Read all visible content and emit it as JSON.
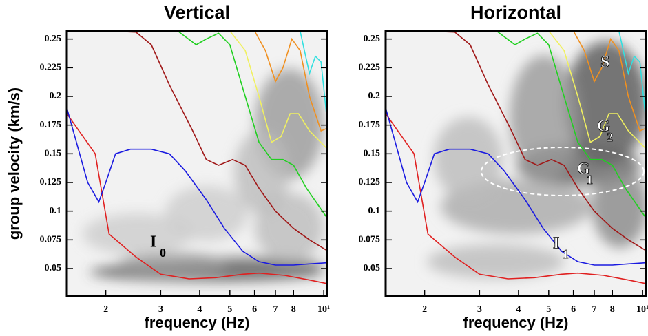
{
  "chart_data": [
    {
      "type": "line",
      "title": "Vertical",
      "xlabel": "frequency (Hz)",
      "ylabel": "group velocity (km/s)",
      "xscale": "log",
      "xlim": [
        1.5,
        10.25
      ],
      "ylim": [
        0.026,
        0.257
      ],
      "xticks": [
        2,
        3,
        4,
        5,
        6,
        7,
        8,
        {
          "value": 10,
          "label": "10¹"
        }
      ],
      "yticks": [
        0.25,
        0.225,
        0.2,
        0.175,
        0.15,
        0.125,
        0.1,
        0.075,
        0.05
      ],
      "annotations": [
        {
          "text": "I",
          "sub": "0",
          "color": "#000000"
        }
      ],
      "series": [
        {
          "color": "#e02020",
          "x": [
            1.5,
            1.85,
            2.05,
            2.5,
            3,
            3.7,
            4.5,
            5.5,
            6.2,
            7.5,
            9,
            10.2
          ],
          "values": [
            0.185,
            0.15,
            0.08,
            0.06,
            0.045,
            0.041,
            0.042,
            0.045,
            0.046,
            0.044,
            0.04,
            0.037
          ]
        },
        {
          "color": "#1a1ae0",
          "x": [
            1.5,
            1.75,
            1.9,
            2,
            2.15,
            2.4,
            2.8,
            3.2,
            3.6,
            4.2,
            4.8,
            5.5,
            6.2,
            7,
            8,
            9,
            10.2
          ],
          "values": [
            0.19,
            0.125,
            0.108,
            0.125,
            0.15,
            0.154,
            0.154,
            0.15,
            0.135,
            0.11,
            0.085,
            0.065,
            0.056,
            0.053,
            0.053,
            0.054,
            0.055
          ]
        },
        {
          "color": "#a01818",
          "x": [
            2,
            2.5,
            2.8,
            3.2,
            3.8,
            4.2,
            4.6,
            5.1,
            5.6,
            6.2,
            7,
            8,
            9,
            10.2
          ],
          "values": [
            0.257,
            0.256,
            0.245,
            0.21,
            0.17,
            0.145,
            0.14,
            0.145,
            0.14,
            0.12,
            0.1,
            0.085,
            0.075,
            0.066
          ]
        },
        {
          "color": "#20d020",
          "x": [
            3.4,
            3.9,
            4.2,
            4.6,
            5,
            5.6,
            6.2,
            6.8,
            7.4,
            8,
            8.8,
            10.2
          ],
          "values": [
            0.257,
            0.245,
            0.25,
            0.255,
            0.245,
            0.2,
            0.16,
            0.145,
            0.145,
            0.14,
            0.12,
            0.095
          ]
        },
        {
          "color": "#f0f060",
          "x": [
            5,
            5.6,
            6.2,
            6.8,
            7.3,
            7.8,
            8.3,
            9,
            10.2
          ],
          "values": [
            0.257,
            0.24,
            0.2,
            0.16,
            0.165,
            0.185,
            0.185,
            0.17,
            0.155
          ]
        },
        {
          "color": "#f09020",
          "x": [
            6,
            6.5,
            7,
            7.4,
            7.9,
            8.4,
            9,
            9.8,
            10.2
          ],
          "values": [
            0.257,
            0.24,
            0.213,
            0.225,
            0.25,
            0.24,
            0.2,
            0.17,
            0.172
          ]
        },
        {
          "color": "#30e0e0",
          "x": [
            8.4,
            9,
            9.4,
            9.8,
            10.2
          ],
          "values": [
            0.257,
            0.22,
            0.235,
            0.23,
            0.185
          ]
        }
      ]
    },
    {
      "type": "line",
      "title": "Horizontal",
      "xlabel": "frequency (Hz)",
      "xscale": "log",
      "xlim": [
        1.5,
        10.25
      ],
      "ylim": [
        0.026,
        0.257
      ],
      "xticks": [
        2,
        3,
        4,
        5,
        6,
        7,
        8,
        {
          "value": 10,
          "label": "10¹"
        }
      ],
      "yticks": [
        0.25,
        0.225,
        0.2,
        0.175,
        0.15,
        0.125,
        0.1,
        0.075,
        0.05
      ],
      "annotations": [
        {
          "text": "S",
          "sub": null,
          "color": "#ffffff"
        },
        {
          "text": "G",
          "sub": "2",
          "color": "#ffffff"
        },
        {
          "text": "G",
          "sub": "1",
          "color": "#ffffff"
        },
        {
          "text": "I",
          "sub": "1",
          "color": "#ffffff"
        }
      ],
      "series": [
        {
          "color": "#e02020",
          "x": [
            1.5,
            1.85,
            2.05,
            2.5,
            3,
            3.7,
            4.5,
            5.5,
            6.2,
            7.5,
            9,
            10.2
          ],
          "values": [
            0.185,
            0.15,
            0.08,
            0.06,
            0.045,
            0.041,
            0.042,
            0.045,
            0.046,
            0.044,
            0.04,
            0.037
          ]
        },
        {
          "color": "#1a1ae0",
          "x": [
            1.5,
            1.75,
            1.9,
            2,
            2.15,
            2.4,
            2.8,
            3.2,
            3.6,
            4.2,
            4.8,
            5.5,
            6.2,
            7,
            8,
            9,
            10.2
          ],
          "values": [
            0.19,
            0.125,
            0.108,
            0.125,
            0.15,
            0.154,
            0.154,
            0.15,
            0.135,
            0.11,
            0.085,
            0.065,
            0.056,
            0.053,
            0.053,
            0.054,
            0.055
          ]
        },
        {
          "color": "#a01818",
          "x": [
            2,
            2.5,
            2.8,
            3.2,
            3.8,
            4.2,
            4.6,
            5.1,
            5.6,
            6.2,
            7,
            8,
            9,
            10.2
          ],
          "values": [
            0.257,
            0.256,
            0.245,
            0.21,
            0.17,
            0.145,
            0.14,
            0.145,
            0.14,
            0.12,
            0.1,
            0.085,
            0.075,
            0.066
          ]
        },
        {
          "color": "#20d020",
          "x": [
            3.4,
            3.9,
            4.2,
            4.6,
            5,
            5.6,
            6.2,
            6.8,
            7.4,
            8,
            8.8,
            10.2
          ],
          "values": [
            0.257,
            0.245,
            0.25,
            0.255,
            0.245,
            0.2,
            0.16,
            0.145,
            0.145,
            0.14,
            0.12,
            0.095
          ]
        },
        {
          "color": "#f0f060",
          "x": [
            5,
            5.6,
            6.2,
            6.8,
            7.3,
            7.8,
            8.3,
            9,
            10.2
          ],
          "values": [
            0.257,
            0.24,
            0.2,
            0.16,
            0.165,
            0.185,
            0.185,
            0.17,
            0.155
          ]
        },
        {
          "color": "#f09020",
          "x": [
            6,
            6.5,
            7,
            7.4,
            7.9,
            8.4,
            9,
            9.8,
            10.2
          ],
          "values": [
            0.257,
            0.24,
            0.213,
            0.225,
            0.25,
            0.24,
            0.2,
            0.17,
            0.172
          ]
        },
        {
          "color": "#30e0e0",
          "x": [
            8.4,
            9,
            9.4,
            9.8,
            10.2
          ],
          "values": [
            0.257,
            0.22,
            0.235,
            0.23,
            0.185
          ]
        }
      ]
    }
  ]
}
